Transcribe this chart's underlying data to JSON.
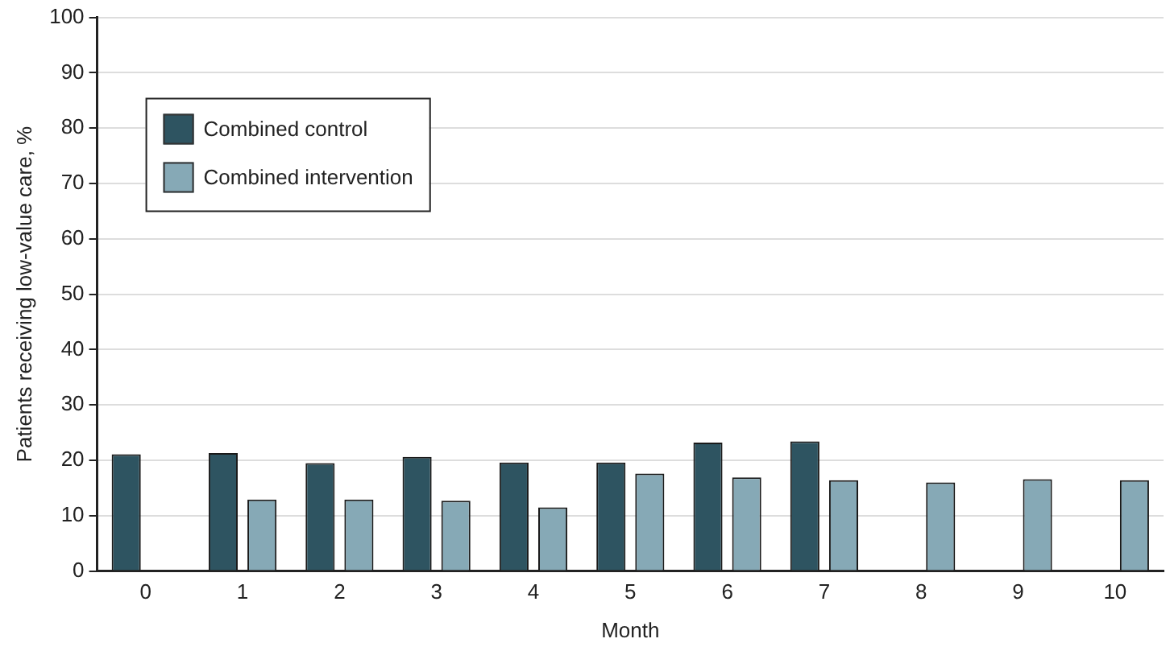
{
  "chart_data": {
    "type": "bar",
    "xlabel": "Month",
    "ylabel": "Patients receiving low-value care, %",
    "categories": [
      "0",
      "1",
      "2",
      "3",
      "4",
      "5",
      "6",
      "7",
      "8",
      "9",
      "10"
    ],
    "series": [
      {
        "name": "Combined control",
        "color": "#2e5461",
        "values": [
          21.1,
          21.3,
          19.5,
          20.6,
          19.6,
          19.6,
          23.2,
          23.4,
          null,
          null,
          null
        ]
      },
      {
        "name": "Combined intervention",
        "color": "#86a9b6",
        "values": [
          null,
          12.9,
          12.9,
          12.7,
          11.5,
          17.6,
          16.9,
          16.4,
          16.0,
          16.6,
          16.4
        ]
      }
    ],
    "ylim": [
      0,
      100
    ],
    "yticks": [
      0,
      10,
      20,
      30,
      40,
      50,
      60,
      70,
      80,
      90,
      100
    ],
    "grid": "y",
    "legend": "top left"
  }
}
